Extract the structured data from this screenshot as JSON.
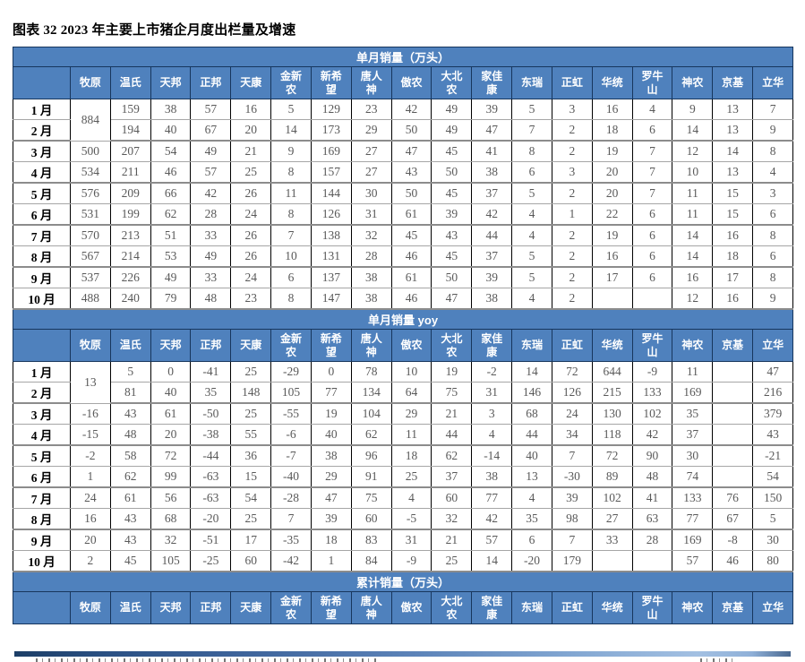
{
  "page": {
    "title": "图表 32 2023 年主要上市猪企月度出栏量及增速"
  },
  "colors": {
    "header_blue": "#4f81bd",
    "header_border_navy": "#17365d",
    "body_text_gray": "#595959",
    "divider_gradient_dark": "#1c3e66",
    "divider_gradient_light": "#a3c0e2"
  },
  "table": {
    "companies": [
      "牧原",
      "温氏",
      "天邦",
      "正邦",
      "天康",
      "金新农",
      "新希望",
      "唐人神",
      "傲农",
      "大北农",
      "家佳康",
      "东瑞",
      "正虹",
      "华统",
      "罗牛山",
      "神农",
      "京基",
      "立华"
    ],
    "sections": [
      {
        "title": "单月销量（万头）",
        "merged_first_value": "884",
        "rows": [
          {
            "month": "1 月",
            "values": [
              159,
              38,
              57,
              16,
              5,
              129,
              23,
              42,
              49,
              39,
              5,
              3,
              16,
              4,
              9,
              13,
              7
            ]
          },
          {
            "month": "2 月",
            "values": [
              194,
              40,
              67,
              20,
              14,
              173,
              29,
              50,
              49,
              47,
              7,
              2,
              18,
              6,
              14,
              13,
              9
            ]
          },
          {
            "month": "3 月",
            "values": [
              500,
              207,
              54,
              49,
              21,
              9,
              169,
              27,
              47,
              45,
              41,
              8,
              2,
              19,
              7,
              12,
              14,
              8
            ]
          },
          {
            "month": "4 月",
            "values": [
              534,
              211,
              46,
              57,
              25,
              8,
              157,
              27,
              43,
              50,
              38,
              6,
              3,
              20,
              7,
              10,
              13,
              4
            ]
          },
          {
            "month": "5 月",
            "values": [
              576,
              209,
              66,
              42,
              26,
              11,
              144,
              30,
              50,
              45,
              37,
              5,
              2,
              20,
              7,
              11,
              15,
              3
            ]
          },
          {
            "month": "6 月",
            "values": [
              531,
              199,
              62,
              28,
              24,
              8,
              126,
              31,
              61,
              39,
              42,
              4,
              1,
              22,
              6,
              11,
              15,
              6
            ]
          },
          {
            "month": "7 月",
            "values": [
              570,
              213,
              51,
              33,
              26,
              7,
              138,
              32,
              45,
              43,
              44,
              4,
              2,
              19,
              6,
              14,
              16,
              8
            ]
          },
          {
            "month": "8 月",
            "values": [
              567,
              214,
              53,
              49,
              26,
              10,
              131,
              28,
              46,
              45,
              37,
              5,
              2,
              16,
              6,
              14,
              18,
              6
            ]
          },
          {
            "month": "9 月",
            "values": [
              537,
              226,
              49,
              33,
              24,
              6,
              137,
              38,
              61,
              50,
              39,
              5,
              2,
              17,
              6,
              16,
              17,
              8
            ]
          },
          {
            "month": "10 月",
            "values": [
              488,
              240,
              79,
              48,
              23,
              8,
              147,
              38,
              46,
              47,
              38,
              4,
              2,
              "",
              "",
              12,
              16,
              9
            ]
          }
        ]
      },
      {
        "title": "单月销量 yoy",
        "merged_first_value": "13",
        "rows": [
          {
            "month": "1 月",
            "values": [
              5,
              0,
              -41,
              25,
              -29,
              0,
              78,
              10,
              19,
              -2,
              14,
              72,
              644,
              -9,
              11,
              "",
              47
            ]
          },
          {
            "month": "2 月",
            "values": [
              81,
              40,
              35,
              148,
              105,
              77,
              134,
              64,
              75,
              31,
              146,
              126,
              215,
              133,
              169,
              "",
              216
            ]
          },
          {
            "month": "3 月",
            "values": [
              -16,
              43,
              61,
              -50,
              25,
              -55,
              19,
              104,
              29,
              21,
              3,
              68,
              24,
              130,
              102,
              35,
              "",
              379
            ]
          },
          {
            "month": "4 月",
            "values": [
              -15,
              48,
              20,
              -38,
              55,
              -6,
              40,
              62,
              11,
              44,
              4,
              44,
              34,
              118,
              42,
              37,
              "",
              43
            ]
          },
          {
            "month": "5 月",
            "values": [
              -2,
              58,
              72,
              -44,
              36,
              -7,
              38,
              96,
              18,
              62,
              -14,
              40,
              7,
              72,
              90,
              30,
              "",
              -21
            ]
          },
          {
            "month": "6 月",
            "values": [
              1,
              62,
              99,
              -63,
              15,
              -40,
              29,
              91,
              25,
              37,
              38,
              13,
              -30,
              89,
              48,
              74,
              "",
              54
            ]
          },
          {
            "month": "7 月",
            "values": [
              24,
              61,
              56,
              -63,
              54,
              -28,
              47,
              75,
              4,
              60,
              77,
              4,
              39,
              102,
              41,
              133,
              76,
              150
            ]
          },
          {
            "month": "8 月",
            "values": [
              16,
              43,
              68,
              -20,
              25,
              7,
              39,
              60,
              -5,
              32,
              42,
              35,
              98,
              27,
              63,
              77,
              67,
              5
            ]
          },
          {
            "month": "9 月",
            "values": [
              20,
              43,
              32,
              -51,
              17,
              -35,
              18,
              83,
              31,
              21,
              57,
              6,
              7,
              33,
              28,
              169,
              -8,
              30
            ]
          },
          {
            "month": "10 月",
            "values": [
              2,
              45,
              105,
              -25,
              60,
              -42,
              1,
              84,
              -9,
              25,
              14,
              -20,
              179,
              "",
              "",
              57,
              46,
              80
            ]
          }
        ]
      },
      {
        "title": "累计销量（万头）",
        "merged_first_value": null,
        "rows": []
      }
    ]
  }
}
